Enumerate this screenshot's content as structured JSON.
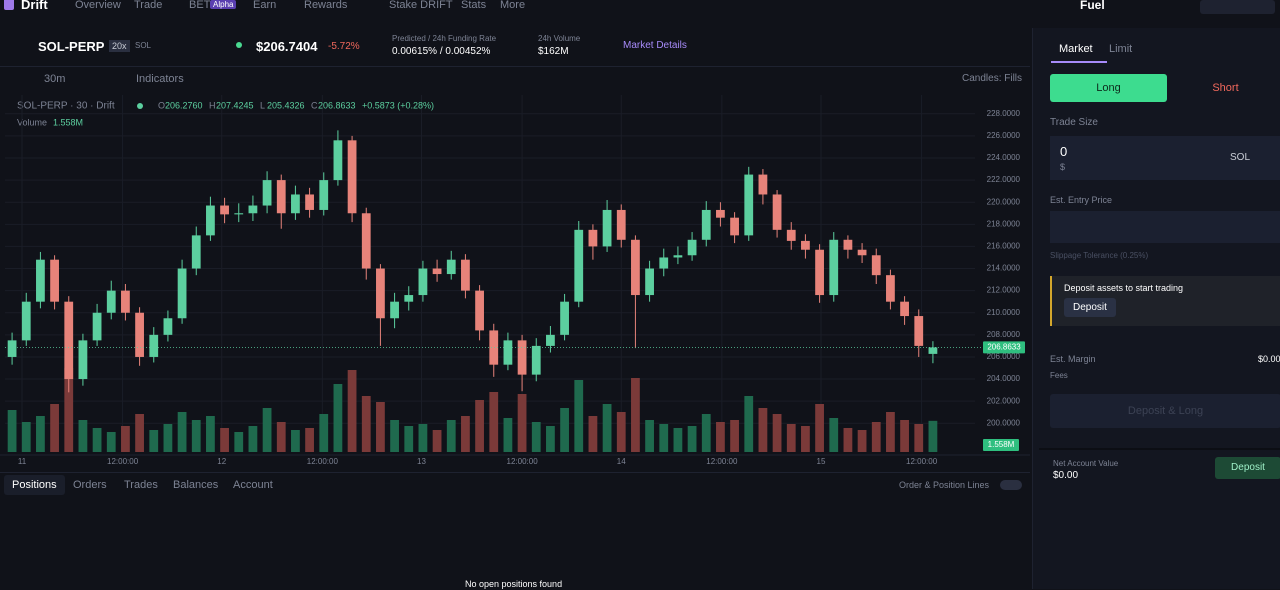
{
  "nav": {
    "brand": "Drift",
    "items": [
      "Overview",
      "Trade",
      "BET",
      "Earn",
      "Rewards",
      "Stake DRIFT",
      "Stats",
      "More"
    ],
    "bet_badge": "Alpha",
    "fuel": "Fuel"
  },
  "market": {
    "symbol": "SOL-PERP",
    "leverage": "20x",
    "base": "SOL",
    "price": "$206.7404",
    "change": "-5.72%",
    "funding_label": "Predicted / 24h Funding Rate",
    "funding_value": "0.00615% / 0.00452%",
    "volume_label": "24h Volume",
    "volume_value": "$162M",
    "details": "Market Details"
  },
  "toolbar": {
    "interval": "30m",
    "indicators": "Indicators",
    "candles": "Candles: Fills"
  },
  "chart_data": {
    "type": "candlestick",
    "title": "SOL-PERP · 30 · Drift",
    "ohlc_legend": [
      {
        "key": "O",
        "value": "206.2760"
      },
      {
        "key": "H",
        "value": "207.4245"
      },
      {
        "key": "L",
        "value": "205.4326"
      },
      {
        "key": "C",
        "value": "206.8633"
      }
    ],
    "change_label": "+0.5873 (+0.28%)",
    "up_color": "#5ccf9f",
    "down_color": "#e7837a",
    "up_volume_color": "#1f6a4e",
    "down_volume_color": "#7b3a39",
    "xlim": [
      -0.5,
      65.5
    ],
    "xticks": [
      {
        "value": 0.7,
        "label": "11"
      },
      {
        "value": 7.8,
        "label": "12:00:00"
      },
      {
        "value": 14.8,
        "label": "12"
      },
      {
        "value": 21.9,
        "label": "12:00:00"
      },
      {
        "value": 28.9,
        "label": "13"
      },
      {
        "value": 36.0,
        "label": "12:00:00"
      },
      {
        "value": 43.0,
        "label": "14"
      },
      {
        "value": 50.1,
        "label": "12:00:00"
      },
      {
        "value": 57.1,
        "label": "15"
      },
      {
        "value": 64.2,
        "label": "12:00:00"
      }
    ],
    "ylim": [
      197.4,
      229.7
    ],
    "yticks": [
      {
        "value": 200,
        "label": "200.0000"
      },
      {
        "value": 202,
        "label": "202.0000"
      },
      {
        "value": 204,
        "label": "204.0000"
      },
      {
        "value": 206,
        "label": "206.0000"
      },
      {
        "value": 208,
        "label": "208.0000"
      },
      {
        "value": 210,
        "label": "210.0000"
      },
      {
        "value": 212,
        "label": "212.0000"
      },
      {
        "value": 214,
        "label": "214.0000"
      },
      {
        "value": 216,
        "label": "216.0000"
      },
      {
        "value": 218,
        "label": "218.0000"
      },
      {
        "value": 220,
        "label": "220.0000"
      },
      {
        "value": 222,
        "label": "222.0000"
      },
      {
        "value": 224,
        "label": "224.0000"
      },
      {
        "value": 226,
        "label": "226.0000"
      },
      {
        "value": 228,
        "label": "228.0000"
      }
    ],
    "y2lim": [
      0,
      6
    ],
    "open": [
      206.0,
      207.5,
      211,
      214.8,
      211,
      204,
      207.5,
      210,
      212,
      210,
      206,
      208,
      209.5,
      214,
      217,
      219.7,
      218.9,
      219,
      219.7,
      222,
      219,
      220.7,
      219.3,
      222,
      225.6,
      219,
      214,
      209.5,
      211,
      211.6,
      214,
      213.5,
      214.8,
      212,
      208.4,
      205.3,
      207.5,
      204.4,
      207,
      208,
      211,
      217.5,
      216,
      219.3,
      216.6,
      211.6,
      214,
      215,
      215.2,
      216.6,
      219.3,
      218.6,
      217,
      222.5,
      220.7,
      217.5,
      216.5,
      215.7,
      211.6,
      216.6,
      215.7,
      215.2,
      213.4,
      211,
      209.7,
      206.276
    ],
    "high": [
      208.2,
      211.8,
      215.5,
      215.2,
      211.5,
      208.1,
      210.8,
      212.9,
      212.6,
      210.5,
      208.7,
      210.2,
      214.8,
      217.8,
      220.5,
      220.4,
      219.9,
      220.6,
      222.8,
      222.5,
      221.5,
      221.3,
      222.7,
      226.5,
      226.0,
      219.5,
      214.4,
      211.8,
      212.4,
      214.7,
      214.8,
      215.6,
      215.3,
      212.5,
      209.0,
      208.2,
      208.0,
      207.7,
      208.8,
      211.7,
      218.3,
      218.0,
      220.2,
      219.8,
      217.0,
      214.7,
      215.8,
      216.0,
      217.3,
      220.1,
      220.0,
      219.1,
      223.2,
      223.0,
      221.1,
      218.2,
      217.1,
      216.2,
      217.3,
      217.0,
      216.3,
      215.8,
      213.9,
      211.5,
      210.3,
      207.4245
    ],
    "low": [
      205.3,
      207.0,
      210.4,
      210.3,
      202.8,
      203.4,
      207.0,
      209.4,
      209.3,
      205.2,
      205.5,
      207.4,
      209.0,
      213.4,
      216.5,
      218.1,
      218.2,
      218.3,
      219.0,
      217.6,
      218.4,
      218.6,
      218.8,
      221.5,
      218.2,
      213.0,
      207.0,
      208.6,
      210.2,
      211.0,
      212.8,
      213.0,
      211.3,
      207.5,
      204.2,
      204.8,
      202.9,
      203.8,
      206.4,
      207.5,
      210.5,
      214.8,
      215.5,
      215.9,
      206.8,
      211.0,
      213.3,
      214.4,
      214.7,
      216.0,
      217.8,
      216.3,
      216.5,
      219.8,
      216.8,
      215.7,
      214.9,
      210.9,
      211.0,
      214.9,
      214.5,
      212.6,
      210.3,
      208.9,
      206.0,
      205.4326
    ],
    "close": [
      207.5,
      211,
      214.8,
      211,
      204,
      207.5,
      210,
      212,
      210,
      206,
      208,
      209.5,
      214,
      217,
      219.7,
      218.9,
      219,
      219.7,
      222,
      219,
      220.7,
      219.3,
      222,
      225.6,
      219,
      214,
      209.5,
      211,
      211.6,
      214,
      213.5,
      214.8,
      212,
      208.4,
      205.3,
      207.5,
      204.4,
      207,
      208,
      211,
      217.5,
      216,
      219.3,
      216.6,
      211.6,
      214,
      215,
      215.2,
      216.6,
      219.3,
      218.6,
      217,
      222.5,
      220.7,
      217.5,
      216.5,
      215.7,
      211.6,
      216.6,
      215.7,
      215.2,
      213.4,
      211,
      209.7,
      207.0,
      206.8633
    ],
    "series": [
      {
        "name": "Volume",
        "axis": "y2",
        "values": [
          2.1,
          1.5,
          1.8,
          2.4,
          4.2,
          1.6,
          1.2,
          1.0,
          1.3,
          1.9,
          1.1,
          1.4,
          2.0,
          1.6,
          1.8,
          1.2,
          1.0,
          1.3,
          2.2,
          1.5,
          1.1,
          1.2,
          1.9,
          3.4,
          4.1,
          2.8,
          2.5,
          1.6,
          1.3,
          1.4,
          1.1,
          1.6,
          1.8,
          2.6,
          3.0,
          1.7,
          2.9,
          1.5,
          1.3,
          2.2,
          3.6,
          1.8,
          2.4,
          2.0,
          3.7,
          1.6,
          1.4,
          1.2,
          1.3,
          1.9,
          1.5,
          1.6,
          2.8,
          2.2,
          1.9,
          1.4,
          1.3,
          2.4,
          1.7,
          1.2,
          1.1,
          1.5,
          2.0,
          1.6,
          1.4,
          1.558
        ],
        "value_labels": {
          "65": "1.558M"
        }
      }
    ]
  },
  "tabs": [
    "Positions",
    "Orders",
    "Trades",
    "Balances",
    "Account"
  ],
  "lines_toggle": "Order & Position Lines",
  "empty": "No open positions found",
  "trade": {
    "tabs": [
      "Market",
      "Limit"
    ],
    "long": "Long",
    "short": "Short",
    "size_label": "Trade Size",
    "size_value": "0",
    "size_unit": "$",
    "asset": "SOL",
    "entry_label": "Est. Entry Price",
    "slippage": "Slippage Tolerance (0.25%)",
    "notice": "Deposit assets to start trading",
    "deposit": "Deposit",
    "margin_label": "Est. Margin",
    "margin_value": "$0.00",
    "fees_label": "Fees",
    "submit": "Deposit & Long",
    "nav_label": "Net Account Value",
    "nav_value": "$0.00",
    "nav_deposit": "Deposit"
  }
}
